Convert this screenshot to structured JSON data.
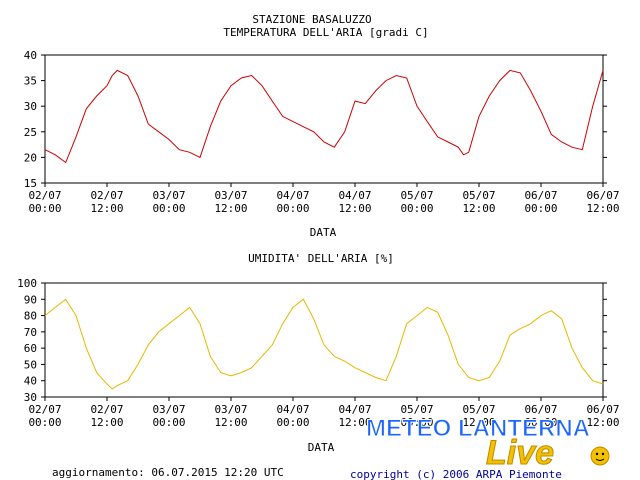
{
  "colors": {
    "temperature_line": "#cc0000",
    "humidity_line": "#e6b800",
    "axis": "#000000",
    "copyright": "#000099",
    "watermark": "#1a66ff",
    "watermark_live": "#f2c200"
  },
  "footer": {
    "update": "aggiornamento: 06.07.2015 12:20 UTC",
    "copyright": "copyright (c) 2006 ARPA Piemonte"
  },
  "watermark": {
    "text": "METEO LANTERNA",
    "live": "Live",
    "icon": "sun-icon"
  },
  "chart_data": [
    {
      "type": "line",
      "title": "STAZIONE BASALUZZO",
      "subtitle": "TEMPERATURA DELL'ARIA [gradi C]",
      "xlabel": "DATA",
      "ylabel": "",
      "x_unit": "hours since first tick",
      "xlim": [
        0,
        108
      ],
      "ylim": [
        15,
        40
      ],
      "yticks": [
        15,
        20,
        25,
        30,
        35,
        40
      ],
      "xtick_labels": [
        [
          "02/07",
          "00:00"
        ],
        [
          "02/07",
          "12:00"
        ],
        [
          "03/07",
          "00:00"
        ],
        [
          "03/07",
          "12:00"
        ],
        [
          "04/07",
          "00:00"
        ],
        [
          "04/07",
          "12:00"
        ],
        [
          "05/07",
          "00:00"
        ],
        [
          "05/07",
          "12:00"
        ],
        [
          "06/07",
          "00:00"
        ],
        [
          "06/07",
          "12:00"
        ]
      ],
      "grid": false,
      "series": [
        {
          "x": [
            0,
            2,
            4,
            6,
            8,
            10,
            12,
            13,
            14,
            16,
            18,
            20,
            22,
            24,
            26,
            28,
            30,
            32,
            34,
            36,
            38,
            40,
            42,
            44,
            46,
            48,
            50,
            52,
            54,
            56,
            58,
            60,
            62,
            64,
            66,
            68,
            70,
            72,
            74,
            76,
            78,
            80,
            81,
            82,
            84,
            86,
            88,
            90,
            92,
            94,
            96,
            98,
            100,
            102,
            104,
            106,
            108
          ],
          "y": [
            21.5,
            20.5,
            19,
            24,
            29.5,
            32,
            34,
            36,
            37,
            36,
            32,
            26.5,
            25,
            23.5,
            21.5,
            21,
            20,
            26,
            31,
            34,
            35.5,
            36,
            34,
            31,
            28,
            27,
            26,
            25,
            23,
            22,
            25,
            31,
            30.5,
            33,
            35,
            36,
            35.5,
            30,
            27,
            24,
            23,
            22,
            20.5,
            21,
            28,
            32,
            35,
            37,
            36.5,
            33,
            29,
            24.5,
            23,
            22,
            21.5,
            30,
            37
          ]
        }
      ]
    },
    {
      "type": "line",
      "title": "UMIDITA' DELL'ARIA [%]",
      "xlabel": "DATA",
      "ylabel": "",
      "x_unit": "hours since first tick",
      "xlim": [
        0,
        108
      ],
      "ylim": [
        30,
        100
      ],
      "yticks": [
        30,
        40,
        50,
        60,
        70,
        80,
        90,
        100
      ],
      "xtick_labels": [
        [
          "02/07",
          "00:00"
        ],
        [
          "02/07",
          "12:00"
        ],
        [
          "03/07",
          "00:00"
        ],
        [
          "03/07",
          "12:00"
        ],
        [
          "04/07",
          "00:00"
        ],
        [
          "04/07",
          "12:00"
        ],
        [
          "05/07",
          "00:00"
        ],
        [
          "05/07",
          "12:00"
        ],
        [
          "06/07",
          "00:00"
        ],
        [
          "06/07",
          "12:00"
        ]
      ],
      "grid": false,
      "series": [
        {
          "x": [
            0,
            2,
            4,
            6,
            8,
            10,
            12,
            13,
            14,
            16,
            18,
            20,
            22,
            24,
            26,
            28,
            30,
            32,
            34,
            36,
            38,
            40,
            42,
            44,
            46,
            48,
            50,
            52,
            54,
            56,
            58,
            60,
            62,
            64,
            66,
            68,
            70,
            72,
            74,
            76,
            78,
            80,
            82,
            84,
            86,
            88,
            90,
            92,
            94,
            96,
            98,
            100,
            102,
            104,
            106,
            108
          ],
          "y": [
            80,
            85,
            90,
            80,
            60,
            45,
            38,
            35,
            37,
            40,
            50,
            62,
            70,
            75,
            80,
            85,
            75,
            55,
            45,
            43,
            45,
            48,
            55,
            62,
            75,
            85,
            90,
            78,
            62,
            55,
            52,
            48,
            45,
            42,
            40,
            55,
            75,
            80,
            85,
            82,
            68,
            50,
            42,
            40,
            42,
            52,
            68,
            72,
            75,
            80,
            83,
            78,
            60,
            48,
            40,
            38
          ]
        }
      ]
    }
  ]
}
